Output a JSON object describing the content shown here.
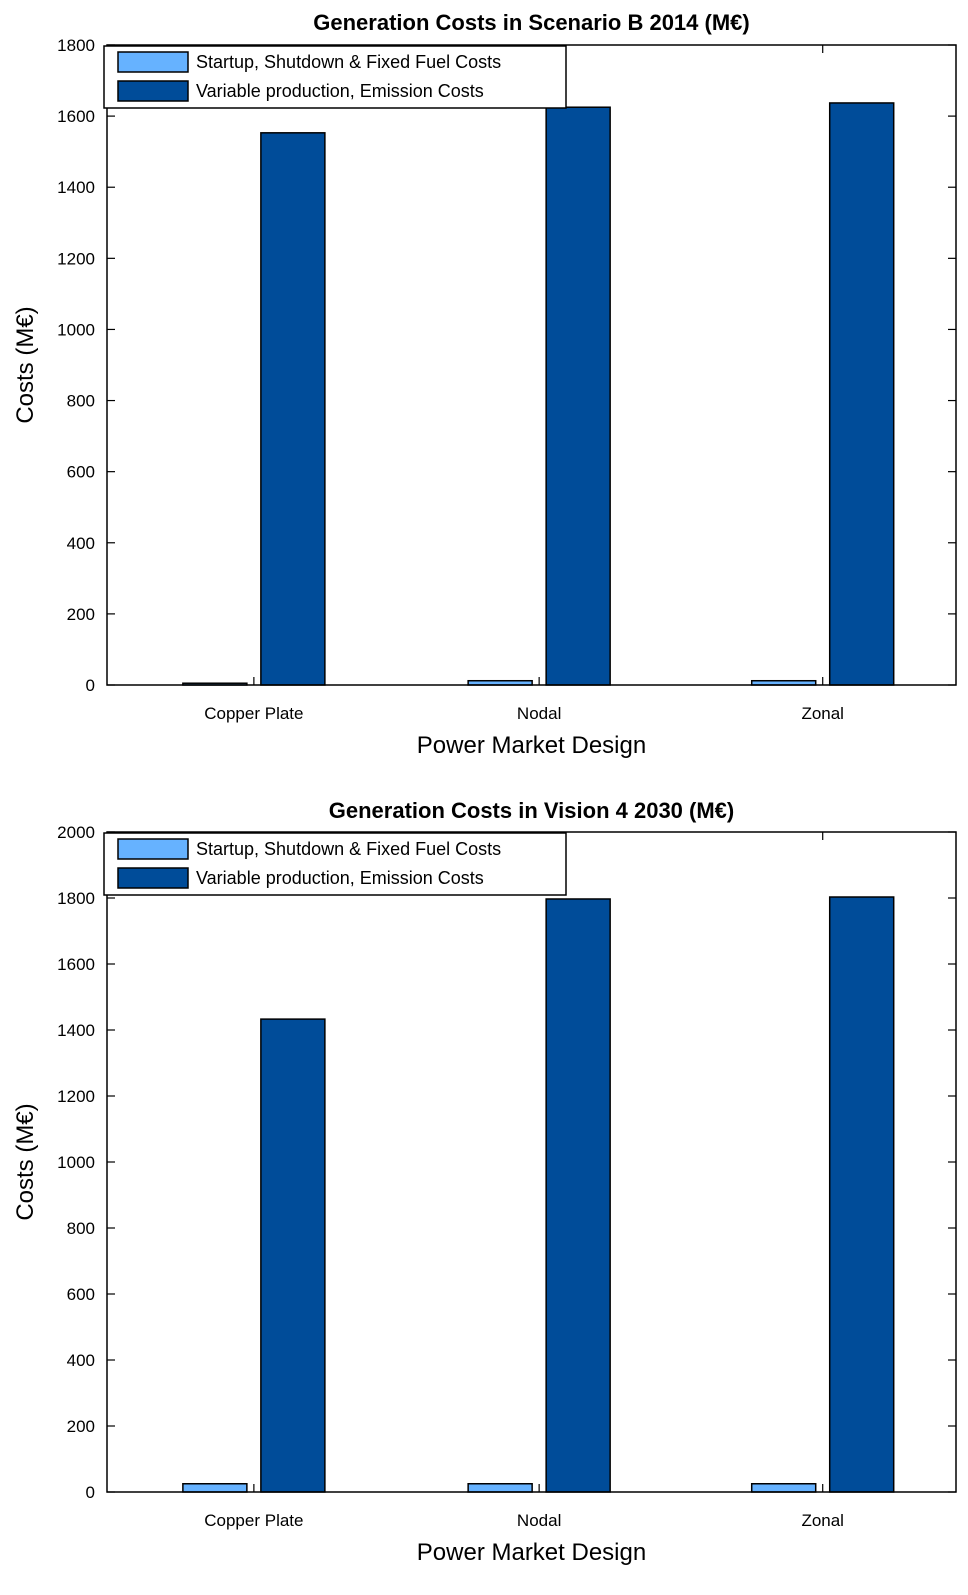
{
  "chart_data": [
    {
      "type": "bar",
      "title": "Generation Costs in Scenario B 2014 (M€)",
      "xlabel": "Power Market Design",
      "ylabel": "Costs (M€)",
      "categories": [
        "Copper Plate",
        "Nodal",
        "Zonal"
      ],
      "ylim": [
        0,
        1800
      ],
      "yticks": [
        0,
        200,
        400,
        600,
        800,
        1000,
        1200,
        1400,
        1600,
        1800
      ],
      "series": [
        {
          "name": "Startup, Shutdown & Fixed Fuel Costs",
          "color": "#66b2ff",
          "values": [
            5,
            12,
            12
          ]
        },
        {
          "name": "Variable production, Emission Costs",
          "color": "#004c99",
          "values": [
            1553,
            1625,
            1637
          ]
        }
      ],
      "legend": "top-left",
      "grid": false
    },
    {
      "type": "bar",
      "title": "Generation Costs in Vision 4 2030 (M€)",
      "xlabel": "Power Market Design",
      "ylabel": "Costs (M€)",
      "categories": [
        "Copper Plate",
        "Nodal",
        "Zonal"
      ],
      "ylim": [
        0,
        2000
      ],
      "yticks": [
        0,
        200,
        400,
        600,
        800,
        1000,
        1200,
        1400,
        1600,
        1800,
        2000
      ],
      "series": [
        {
          "name": "Startup, Shutdown & Fixed Fuel Costs",
          "color": "#66b2ff",
          "values": [
            25,
            25,
            25
          ]
        },
        {
          "name": "Variable production, Emission Costs",
          "color": "#004c99",
          "values": [
            1433,
            1797,
            1803
          ]
        }
      ],
      "legend": "top-left",
      "grid": false
    }
  ]
}
